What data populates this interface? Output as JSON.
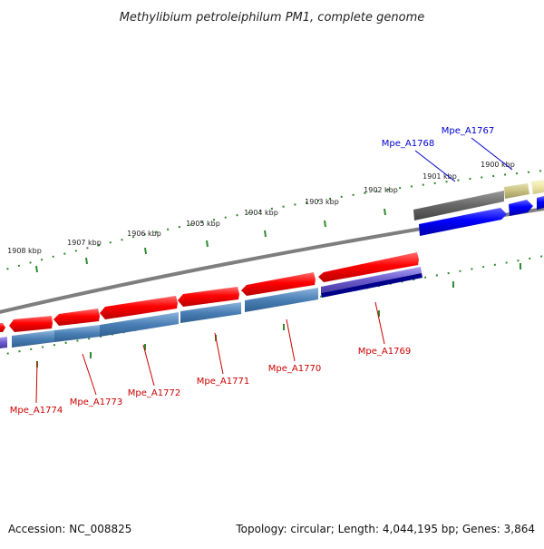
{
  "title": "Methylibium petroleiphilum PM1, complete genome",
  "footer": {
    "accession": "Accession: NC_008825",
    "summary": "Topology: circular; Length: 4,044,195 bp; Genes: 3,864"
  },
  "ticks": [
    "1908 kbp",
    "1907 kbp",
    "1906 kbp",
    "1905 kbp",
    "1904 kbp",
    "1903 kbp",
    "1902 kbp",
    "1901 kbp",
    "1900 kbp"
  ],
  "genes": [
    {
      "name": "Mpe_A1774",
      "color": "#cc0000"
    },
    {
      "name": "Mpe_A1773",
      "color": "#cc0000"
    },
    {
      "name": "Mpe_A1772",
      "color": "#cc0000"
    },
    {
      "name": "Mpe_A1771",
      "color": "#cc0000"
    },
    {
      "name": "Mpe_A1770",
      "color": "#cc0000"
    },
    {
      "name": "Mpe_A1769",
      "color": "#cc0000"
    },
    {
      "name": "Mpe_A1768",
      "color": "#0000cc"
    },
    {
      "name": "Mpe_A1767",
      "color": "#0000cc"
    }
  ],
  "colors": {
    "backbone": "#808080",
    "tick": "#2e8b2e",
    "cds_red": "#ff0000",
    "cds_blue": "#0000ff",
    "steel": "#4a7fb5",
    "purple": "#6a5acd",
    "navy": "#00008b",
    "dark_gray": "#666666",
    "khaki": "#c8c080",
    "pale_yellow": "#ede6a8"
  }
}
